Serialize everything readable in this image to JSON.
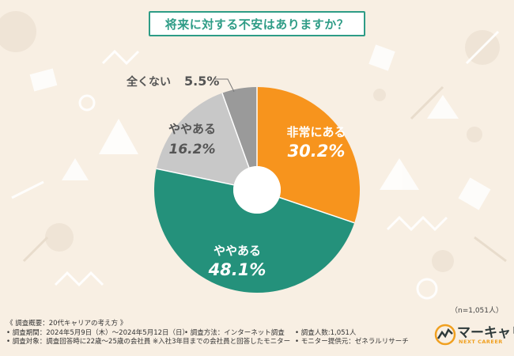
{
  "title": "将来に対する不安はありますか？",
  "chart_data": {
    "type": "pie",
    "variant": "donut",
    "slices": [
      {
        "label": "非常にある",
        "value": 30.2,
        "display": "30.2%",
        "color": "#f7941d",
        "text_color": "#ffffff"
      },
      {
        "label": "ややある",
        "value": 48.1,
        "display": "48.1%",
        "color": "#24917b",
        "text_color": "#ffffff"
      },
      {
        "label": "ややある",
        "value": 16.2,
        "display": "16.2%",
        "color": "#c8c8c8",
        "text_color": "#555555"
      },
      {
        "label": "全くない",
        "value": 5.5,
        "display": "5.5%",
        "color": "#9a9a9a",
        "text_color": "#555555"
      }
    ]
  },
  "sample_size": "（n=1,051人）",
  "footer": {
    "survey_title": "《 調査概要：20代キャリアの考え方 》",
    "period": "• 調査期間：2024年5月9日（木）～2024年5月12日（日）",
    "method": "• 調査方法：インターネット調査",
    "respondents": "• 調査人数:1,051人",
    "target": "• 調査対象：調査回答時に22歳～25歳の会社員 ※入社3年目までの会社員と回答したモニター",
    "provider": "• モニター提供元：ゼネラルリサーチ"
  },
  "logo": {
    "name": "マーキャリ",
    "tagline": "NEXT CAREER",
    "primary_color": "#2e3a3a",
    "accent_color": "#f0a020"
  }
}
